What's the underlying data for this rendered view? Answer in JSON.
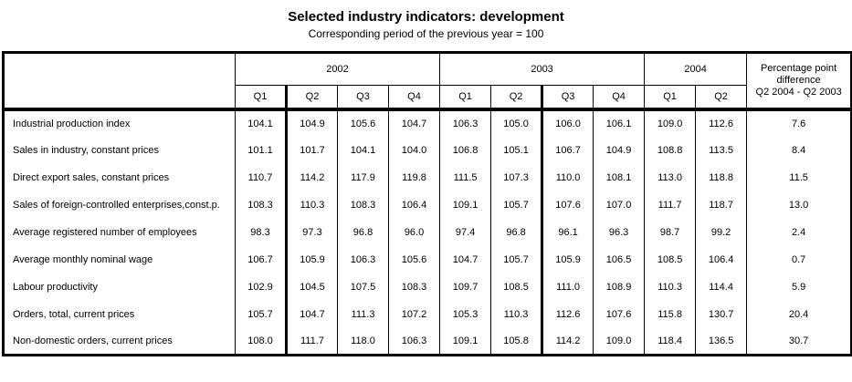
{
  "title": "Selected industry indicators: development",
  "subtitle": "Corresponding period of the previous year = 100",
  "colors": {
    "background": "#ffffff",
    "border": "#000000",
    "text": "#000000"
  },
  "table": {
    "year_groups": [
      {
        "label": "2002",
        "quarters": [
          "Q1",
          "Q2",
          "Q3",
          "Q4"
        ]
      },
      {
        "label": "2003",
        "quarters": [
          "Q1",
          "Q2",
          "Q3",
          "Q4"
        ]
      },
      {
        "label": "2004",
        "quarters": [
          "Q1",
          "Q2"
        ]
      }
    ],
    "diff_header": [
      "Percentage point",
      "difference",
      "Q2 2004 - Q2 2003"
    ],
    "rows": [
      {
        "label": "Industrial production index",
        "values": [
          "104.1",
          "104.9",
          "105.6",
          "104.7",
          "106.3",
          "105.0",
          "106.0",
          "106.1",
          "109.0",
          "112.6"
        ],
        "diff": "7.6"
      },
      {
        "label": "Sales in industry, constant prices",
        "values": [
          "101.1",
          "101.7",
          "104.1",
          "104.0",
          "106.8",
          "105.1",
          "106.7",
          "104.9",
          "108.8",
          "113.5"
        ],
        "diff": "8.4"
      },
      {
        "label": "Direct export sales, constant prices",
        "values": [
          "110.7",
          "114.2",
          "117.9",
          "119.8",
          "111.5",
          "107.3",
          "110.0",
          "108.1",
          "113.0",
          "118.8"
        ],
        "diff": "11.5"
      },
      {
        "label": "Sales of foreign-controlled enterprises,const.p.",
        "values": [
          "108.3",
          "110.3",
          "108.3",
          "106.4",
          "109.1",
          "105.7",
          "107.6",
          "107.0",
          "111.7",
          "118.7"
        ],
        "diff": "13.0"
      },
      {
        "label": "Average registered number of employees",
        "values": [
          "98.3",
          "97.3",
          "96.8",
          "96.0",
          "97.4",
          "96.8",
          "96.1",
          "96.3",
          "98.7",
          "99.2"
        ],
        "diff": "2.4"
      },
      {
        "label": "Average monthly nominal wage",
        "values": [
          "106.7",
          "105.9",
          "106.3",
          "105.6",
          "104.7",
          "105.7",
          "105.9",
          "106.5",
          "108.5",
          "106.4"
        ],
        "diff": "0.7"
      },
      {
        "label": "Labour productivity",
        "values": [
          "102.9",
          "104.5",
          "107.5",
          "108.3",
          "109.7",
          "108.5",
          "111.0",
          "108.9",
          "110.3",
          "114.4"
        ],
        "diff": "5.9"
      },
      {
        "label": "Orders, total, current prices",
        "values": [
          "105.7",
          "104.7",
          "111.3",
          "107.2",
          "105.3",
          "110.3",
          "112.6",
          "107.6",
          "115.8",
          "130.7"
        ],
        "diff": "20.4"
      },
      {
        "label": "Non-domestic orders, current prices",
        "values": [
          "108.0",
          "111.7",
          "118.0",
          "106.3",
          "109.1",
          "105.8",
          "114.2",
          "109.0",
          "118.4",
          "136.5"
        ],
        "diff": "30.7"
      }
    ]
  },
  "chart_data": {
    "type": "table",
    "title": "Selected industry indicators: development",
    "subtitle": "Corresponding period of the previous year = 100",
    "columns": [
      "2002 Q1",
      "2002 Q2",
      "2002 Q3",
      "2002 Q4",
      "2003 Q1",
      "2003 Q2",
      "2003 Q3",
      "2003 Q4",
      "2004 Q1",
      "2004 Q2",
      "Percentage point difference Q2 2004 - Q2 2003"
    ],
    "rows": [
      {
        "indicator": "Industrial production index",
        "values": [
          104.1,
          104.9,
          105.6,
          104.7,
          106.3,
          105.0,
          106.0,
          106.1,
          109.0,
          112.6
        ],
        "pp_difference_q2_2004_vs_q2_2003": 7.6
      },
      {
        "indicator": "Sales in industry, constant prices",
        "values": [
          101.1,
          101.7,
          104.1,
          104.0,
          106.8,
          105.1,
          106.7,
          104.9,
          108.8,
          113.5
        ],
        "pp_difference_q2_2004_vs_q2_2003": 8.4
      },
      {
        "indicator": "Direct export sales, constant prices",
        "values": [
          110.7,
          114.2,
          117.9,
          119.8,
          111.5,
          107.3,
          110.0,
          108.1,
          113.0,
          118.8
        ],
        "pp_difference_q2_2004_vs_q2_2003": 11.5
      },
      {
        "indicator": "Sales of foreign-controlled enterprises,const.p.",
        "values": [
          108.3,
          110.3,
          108.3,
          106.4,
          109.1,
          105.7,
          107.6,
          107.0,
          111.7,
          118.7
        ],
        "pp_difference_q2_2004_vs_q2_2003": 13.0
      },
      {
        "indicator": "Average registered number of employees",
        "values": [
          98.3,
          97.3,
          96.8,
          96.0,
          97.4,
          96.8,
          96.1,
          96.3,
          98.7,
          99.2
        ],
        "pp_difference_q2_2004_vs_q2_2003": 2.4
      },
      {
        "indicator": "Average monthly nominal wage",
        "values": [
          106.7,
          105.9,
          106.3,
          105.6,
          104.7,
          105.7,
          105.9,
          106.5,
          108.5,
          106.4
        ],
        "pp_difference_q2_2004_vs_q2_2003": 0.7
      },
      {
        "indicator": "Labour productivity",
        "values": [
          102.9,
          104.5,
          107.5,
          108.3,
          109.7,
          108.5,
          111.0,
          108.9,
          110.3,
          114.4
        ],
        "pp_difference_q2_2004_vs_q2_2003": 5.9
      },
      {
        "indicator": "Orders, total, current prices",
        "values": [
          105.7,
          104.7,
          111.3,
          107.2,
          105.3,
          110.3,
          112.6,
          107.6,
          115.8,
          130.7
        ],
        "pp_difference_q2_2004_vs_q2_2003": 20.4
      },
      {
        "indicator": "Non-domestic orders, current prices",
        "values": [
          108.0,
          111.7,
          118.0,
          106.3,
          109.1,
          105.8,
          114.2,
          109.0,
          118.4,
          136.5
        ],
        "pp_difference_q2_2004_vs_q2_2003": 30.7
      }
    ],
    "layout": {
      "grid": "vertical rules only between data columns",
      "legend_position": "none"
    }
  }
}
